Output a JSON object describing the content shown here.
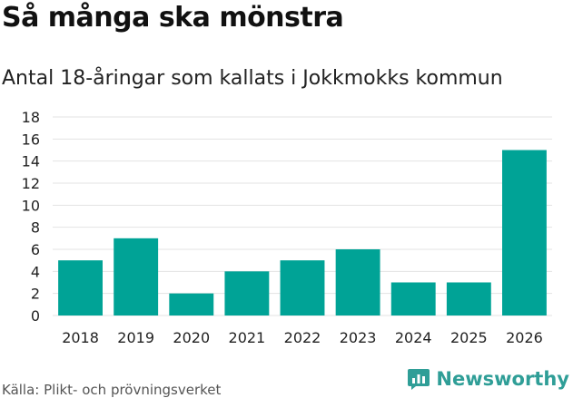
{
  "header": {
    "title": "Så många ska mönstra",
    "subtitle": "Antal 18-åringar som kallats i Jokkmokks kommun"
  },
  "footer": {
    "source": "Källa: Plikt- och prövningsverket",
    "brand": "Newsworthy",
    "brand_icon": "newsworthy-logo-icon"
  },
  "colors": {
    "bar": "#00a396",
    "grid": "#e3e3e3",
    "brand": "#2f9e97"
  },
  "chart_data": {
    "type": "bar",
    "categories": [
      "2018",
      "2019",
      "2020",
      "2021",
      "2022",
      "2023",
      "2024",
      "2025",
      "2026"
    ],
    "values": [
      5,
      7,
      2,
      4,
      5,
      6,
      3,
      3,
      15
    ],
    "ylim": [
      0,
      18
    ],
    "yticks": [
      "0",
      "2",
      "4",
      "6",
      "8",
      "10",
      "12",
      "14",
      "16",
      "18"
    ],
    "grid": true,
    "legend": "none"
  }
}
